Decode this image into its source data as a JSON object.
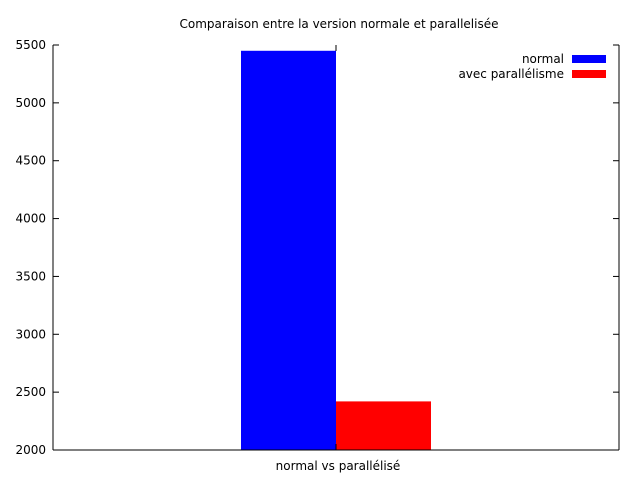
{
  "chart_data": {
    "type": "bar",
    "title": "Comparaison entre la version normale et parallelisée",
    "categories": [
      "normal vs parallélisé"
    ],
    "series": [
      {
        "name": "normal",
        "values": [
          5450
        ],
        "color": "#0000ff"
      },
      {
        "name": "avec parallélisme",
        "values": [
          2420
        ],
        "color": "#ff0000"
      }
    ],
    "xlabel": "",
    "ylabel": "",
    "ylim": [
      2000,
      5500
    ],
    "yticks": [
      2000,
      2500,
      3000,
      3500,
      4000,
      4500,
      5000,
      5500
    ],
    "grid": false,
    "legend_position": "top-right"
  }
}
